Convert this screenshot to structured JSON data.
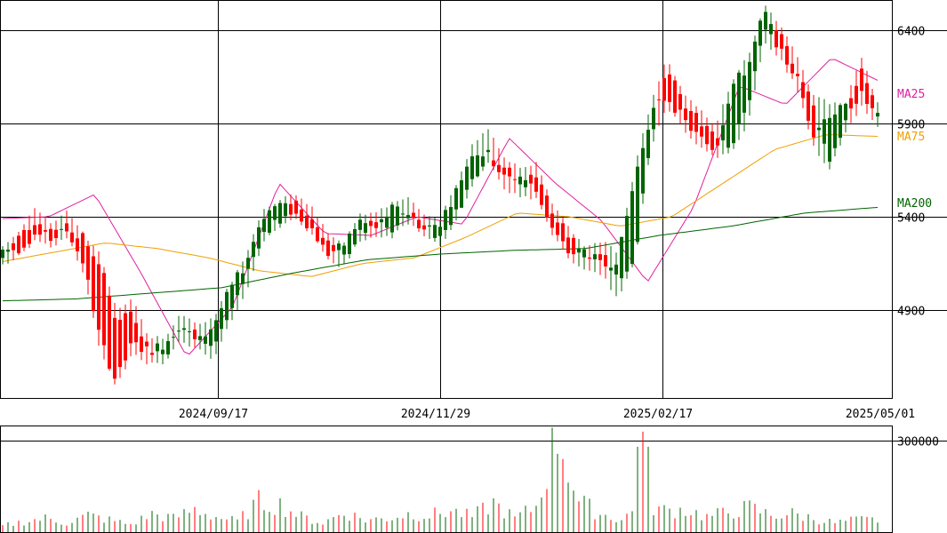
{
  "chart_data": [
    {
      "type": "candlestick",
      "x_ticks": [
        "2024/09/17",
        "2024/11/29",
        "2025/02/17",
        "2025/05/01"
      ],
      "y_ticks": [
        6400,
        5900,
        5400,
        4900
      ],
      "ylim": [
        4430,
        6560
      ],
      "grid": true,
      "up_color": "#006400",
      "down_color": "#ff0000",
      "moving_averages": [
        {
          "name": "MA25",
          "color": "#e020a0",
          "values": [
            5390,
            5400,
            5520,
            5100,
            4650,
            4920,
            5580,
            5310,
            5300,
            5400,
            5360,
            5820,
            5580,
            5380,
            5050,
            5450,
            6100,
            6000,
            6250,
            6130
          ]
        },
        {
          "name": "MA75",
          "color": "#f0a000",
          "values": [
            5160,
            5210,
            5260,
            5230,
            5180,
            5110,
            5080,
            5150,
            5180,
            5290,
            5420,
            5400,
            5350,
            5400,
            5580,
            5760,
            5840,
            5830
          ]
        },
        {
          "name": "MA200",
          "color": "#006400",
          "values": [
            4950,
            4960,
            4990,
            5020,
            5100,
            5170,
            5200,
            5220,
            5230,
            5300,
            5350,
            5420,
            5450
          ]
        }
      ],
      "ohlc_anchors": [
        [
          5180,
          5240,
          5150,
          5220
        ],
        [
          5290,
          5310,
          5200,
          5230
        ],
        [
          5380,
          5430,
          5280,
          5310
        ],
        [
          5330,
          5360,
          5250,
          5280
        ],
        [
          5360,
          5420,
          5300,
          5330
        ],
        [
          5280,
          5290,
          5100,
          5150
        ],
        [
          5150,
          5190,
          4700,
          4750
        ],
        [
          4850,
          4900,
          4500,
          4520
        ],
        [
          4900,
          4950,
          4680,
          4720
        ],
        [
          4700,
          4750,
          4620,
          4680
        ],
        [
          4660,
          4740,
          4620,
          4720
        ],
        [
          4800,
          4880,
          4750,
          4830
        ],
        [
          4780,
          4820,
          4700,
          4720
        ],
        [
          4700,
          4850,
          4650,
          4820
        ],
        [
          4880,
          5010,
          4840,
          5000
        ],
        [
          5080,
          5170,
          5000,
          5150
        ],
        [
          5300,
          5420,
          5260,
          5400
        ],
        [
          5370,
          5480,
          5350,
          5470
        ],
        [
          5470,
          5520,
          5400,
          5420
        ],
        [
          5400,
          5450,
          5320,
          5350
        ],
        [
          5280,
          5310,
          5180,
          5200
        ],
        [
          5170,
          5250,
          5140,
          5240
        ],
        [
          5300,
          5400,
          5280,
          5380
        ],
        [
          5370,
          5420,
          5300,
          5330
        ],
        [
          5320,
          5460,
          5300,
          5440
        ],
        [
          5420,
          5500,
          5380,
          5420
        ],
        [
          5370,
          5400,
          5300,
          5330
        ],
        [
          5290,
          5380,
          5250,
          5370
        ],
        [
          5420,
          5560,
          5400,
          5540
        ],
        [
          5600,
          5780,
          5580,
          5750
        ],
        [
          5750,
          5870,
          5700,
          5730
        ],
        [
          5670,
          5700,
          5550,
          5600
        ],
        [
          5560,
          5650,
          5520,
          5620
        ],
        [
          5640,
          5680,
          5500,
          5530
        ],
        [
          5400,
          5450,
          5300,
          5320
        ],
        [
          5290,
          5320,
          5180,
          5200
        ],
        [
          5180,
          5230,
          5120,
          5220
        ],
        [
          5220,
          5260,
          5100,
          5130
        ],
        [
          5060,
          5200,
          4960,
          5180
        ],
        [
          5180,
          5650,
          5170,
          5600
        ],
        [
          5800,
          6000,
          5780,
          5950
        ],
        [
          6200,
          6240,
          6000,
          6050
        ],
        [
          6000,
          6050,
          5880,
          5920
        ],
        [
          5920,
          5960,
          5780,
          5820
        ],
        [
          5850,
          5880,
          5720,
          5760
        ],
        [
          5780,
          6120,
          5760,
          6100
        ],
        [
          6000,
          6250,
          5900,
          6200
        ],
        [
          6400,
          6520,
          6350,
          6500
        ],
        [
          6360,
          6420,
          6250,
          6280
        ],
        [
          6200,
          6250,
          6100,
          6150
        ],
        [
          6000,
          6050,
          5800,
          5850
        ],
        [
          5700,
          6000,
          5650,
          5950
        ],
        [
          5900,
          6000,
          5850,
          5980
        ],
        [
          6200,
          6250,
          6000,
          6050
        ],
        [
          5950,
          6000,
          5900,
          5930
        ]
      ]
    },
    {
      "type": "bar",
      "y_ticks": [
        300000
      ],
      "ylim": [
        0,
        350000
      ],
      "volume_anchors": [
        20000,
        35000,
        45000,
        30000,
        55000,
        40000,
        25000,
        60000,
        45000,
        75000,
        50000,
        35000,
        100000,
        90000,
        50000,
        30000,
        65000,
        40000,
        45000,
        60000,
        55000,
        70000,
        50000,
        95000,
        45000,
        85000,
        330000,
        100000,
        60000,
        40000,
        95000,
        70000,
        75000,
        50000,
        65000,
        80000,
        55000,
        60000,
        45000,
        30000,
        40000,
        40000
      ]
    }
  ]
}
